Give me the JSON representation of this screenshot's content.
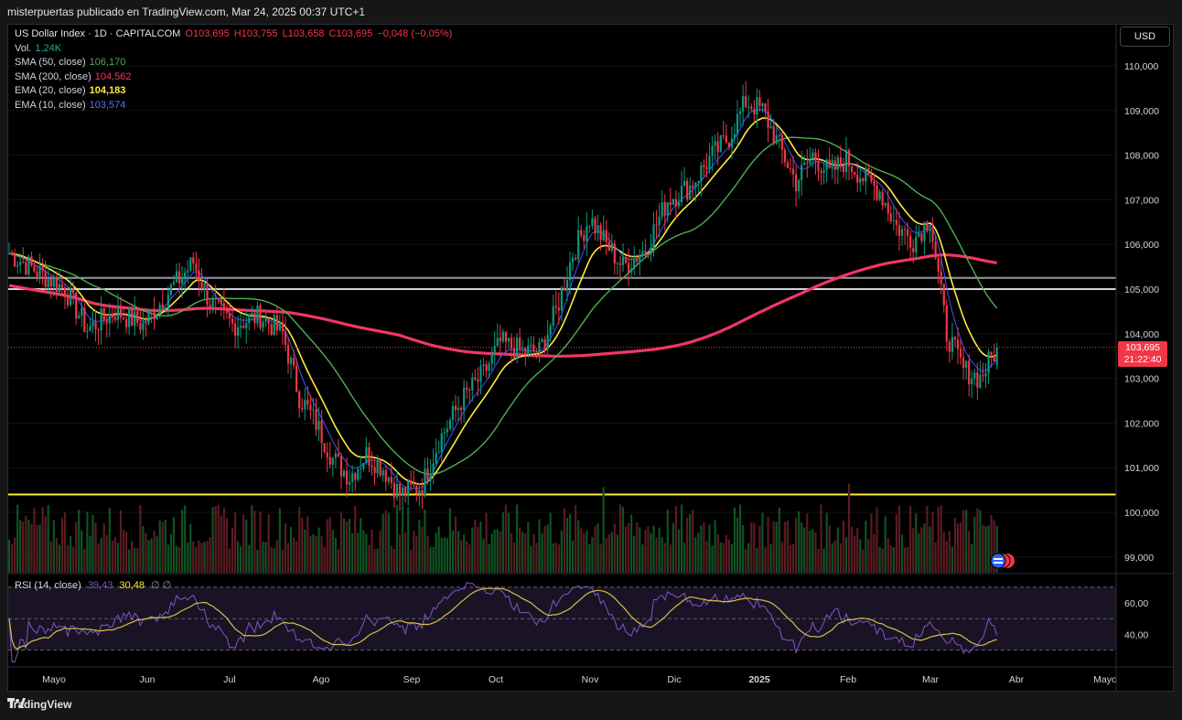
{
  "header": {
    "attribution": "misterpuertas publicado en TradingView.com, Mar 24, 2025 00:37 UTC+1"
  },
  "footer": {
    "brand": "TradingView",
    "logo_icon": "tradingview-logo-icon"
  },
  "currency_button": "USD",
  "legend": {
    "symbol": "US Dollar Index · 1D · CAPITALCOM",
    "ohlc": [
      "O103,695",
      "H103,755",
      "L103,658",
      "C103,695",
      "−0,048 (−0,05%)"
    ],
    "vol_label": "Vol.",
    "vol_value": "1,24K",
    "indicators": [
      {
        "label": "SMA (50, close)",
        "value": "106,170",
        "color": "#4caf50"
      },
      {
        "label": "SMA (200, close)",
        "value": "104,562",
        "color": "#f23665"
      },
      {
        "label": "EMA (20, close)",
        "value": "104,183",
        "color": "#ffeb3b"
      },
      {
        "label": "EMA (10, close)",
        "value": "103,574",
        "color": "#3f51ff"
      }
    ]
  },
  "last_price": {
    "value": "103,695",
    "countdown": "21:22:40"
  },
  "rsi": {
    "label": "RSI (14, close)",
    "value": "39,43",
    "ma_value": "30,48",
    "extra": "∅ ∅"
  },
  "colors": {
    "up": "#089981",
    "down": "#f23645",
    "vol_up": "#0f5323",
    "vol_down": "#5b1b22"
  },
  "chart_data": {
    "type": "candlestick",
    "title": "US Dollar Index · 1D · CAPITALCOM",
    "price_axis": {
      "ticks": [
        "110,000",
        "109,000",
        "108,000",
        "107,000",
        "106,000",
        "105,000",
        "104,000",
        "103,000",
        "102,000",
        "101,000",
        "100,000",
        "99,000"
      ],
      "ylim": [
        98.7,
        110.5
      ]
    },
    "rsi_axis": {
      "ticks": [
        "60,00",
        "40,00"
      ],
      "levels": [
        70,
        50,
        30
      ]
    },
    "x_labels": [
      "Mayo",
      "Jun",
      "Jul",
      "Ago",
      "Sep",
      "Oct",
      "Nov",
      "Dic",
      "2025",
      "Feb",
      "Mar",
      "Abr",
      "Mayo"
    ],
    "horizontal_levels": [
      105.25,
      105.0,
      100.4
    ],
    "close_anchors": [
      [
        0,
        105.8
      ],
      [
        10,
        105.4
      ],
      [
        20,
        105.0
      ],
      [
        28,
        104.1
      ],
      [
        38,
        104.5
      ],
      [
        48,
        104.2
      ],
      [
        58,
        105.0
      ],
      [
        66,
        105.6
      ],
      [
        72,
        104.7
      ],
      [
        80,
        104.2
      ],
      [
        90,
        104.4
      ],
      [
        98,
        104.0
      ],
      [
        104,
        102.6
      ],
      [
        110,
        102.0
      ],
      [
        116,
        101.2
      ],
      [
        122,
        100.8
      ],
      [
        128,
        101.3
      ],
      [
        134,
        101.0
      ],
      [
        140,
        100.4
      ],
      [
        148,
        100.6
      ],
      [
        154,
        101.6
      ],
      [
        162,
        102.5
      ],
      [
        170,
        103.1
      ],
      [
        176,
        103.8
      ],
      [
        184,
        103.6
      ],
      [
        190,
        103.6
      ],
      [
        196,
        104.5
      ],
      [
        202,
        105.8
      ],
      [
        208,
        106.6
      ],
      [
        214,
        106.0
      ],
      [
        220,
        105.5
      ],
      [
        228,
        105.9
      ],
      [
        236,
        107.0
      ],
      [
        244,
        107.3
      ],
      [
        252,
        108.0
      ],
      [
        258,
        108.4
      ],
      [
        264,
        109.2
      ],
      [
        270,
        109.0
      ],
      [
        276,
        108.2
      ],
      [
        282,
        107.4
      ],
      [
        288,
        108.0
      ],
      [
        294,
        107.6
      ],
      [
        300,
        107.9
      ],
      [
        306,
        107.5
      ],
      [
        312,
        107.2
      ],
      [
        318,
        106.4
      ],
      [
        324,
        106.1
      ],
      [
        330,
        106.6
      ],
      [
        336,
        104.0
      ],
      [
        342,
        103.2
      ],
      [
        348,
        103.0
      ],
      [
        354,
        103.7
      ]
    ],
    "series": [
      {
        "name": "SMA (50, close)",
        "last": 106.17
      },
      {
        "name": "SMA (200, close)",
        "last": 104.562
      },
      {
        "name": "EMA (20, close)",
        "last": 104.183
      },
      {
        "name": "EMA (10, close)",
        "last": 103.574
      },
      {
        "name": "RSI (14, close)",
        "last": 39.43
      },
      {
        "name": "RSI MA",
        "last": 30.48
      }
    ]
  }
}
